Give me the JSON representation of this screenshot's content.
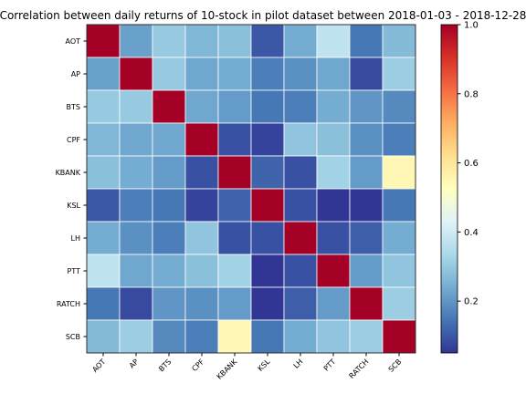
{
  "chart_data": {
    "type": "heatmap",
    "title": "Correlation between daily returns of 10-stock in pilot dataset between 2018-01-03 - 2018-12-28",
    "x_categories": [
      "AOT",
      "AP",
      "BTS",
      "CPF",
      "KBANK",
      "KSL",
      "LH",
      "PTT",
      "RATCH",
      "SCB"
    ],
    "y_categories": [
      "AOT",
      "AP",
      "BTS",
      "CPF",
      "KBANK",
      "KSL",
      "LH",
      "PTT",
      "RATCH",
      "SCB"
    ],
    "values": [
      [
        1.0,
        0.22,
        0.3,
        0.26,
        0.28,
        0.1,
        0.24,
        0.37,
        0.15,
        0.27
      ],
      [
        0.22,
        1.0,
        0.3,
        0.23,
        0.24,
        0.16,
        0.19,
        0.23,
        0.08,
        0.31
      ],
      [
        0.3,
        0.3,
        1.0,
        0.23,
        0.21,
        0.15,
        0.16,
        0.24,
        0.2,
        0.18
      ],
      [
        0.26,
        0.23,
        0.23,
        1.0,
        0.09,
        0.07,
        0.29,
        0.28,
        0.19,
        0.16
      ],
      [
        0.28,
        0.24,
        0.21,
        0.09,
        1.0,
        0.12,
        0.09,
        0.32,
        0.21,
        0.55
      ],
      [
        0.1,
        0.16,
        0.15,
        0.07,
        0.12,
        1.0,
        0.09,
        0.05,
        0.05,
        0.15
      ],
      [
        0.24,
        0.19,
        0.16,
        0.29,
        0.09,
        0.09,
        1.0,
        0.09,
        0.11,
        0.24
      ],
      [
        0.37,
        0.23,
        0.24,
        0.28,
        0.32,
        0.05,
        0.09,
        1.0,
        0.21,
        0.29
      ],
      [
        0.15,
        0.08,
        0.2,
        0.19,
        0.21,
        0.05,
        0.11,
        0.21,
        1.0,
        0.31
      ],
      [
        0.27,
        0.31,
        0.18,
        0.16,
        0.55,
        0.15,
        0.24,
        0.29,
        0.31,
        1.0
      ]
    ],
    "colormap": "RdYlBu_r",
    "vmin": 0.05,
    "vmax": 1.0,
    "colorbar_ticks": [
      0.2,
      0.4,
      0.6,
      0.8,
      1.0
    ],
    "colorbar_tick_labels": [
      "0.2",
      "0.4",
      "0.6",
      "0.8",
      "1.0"
    ],
    "gridline_color": "#ffffff"
  }
}
